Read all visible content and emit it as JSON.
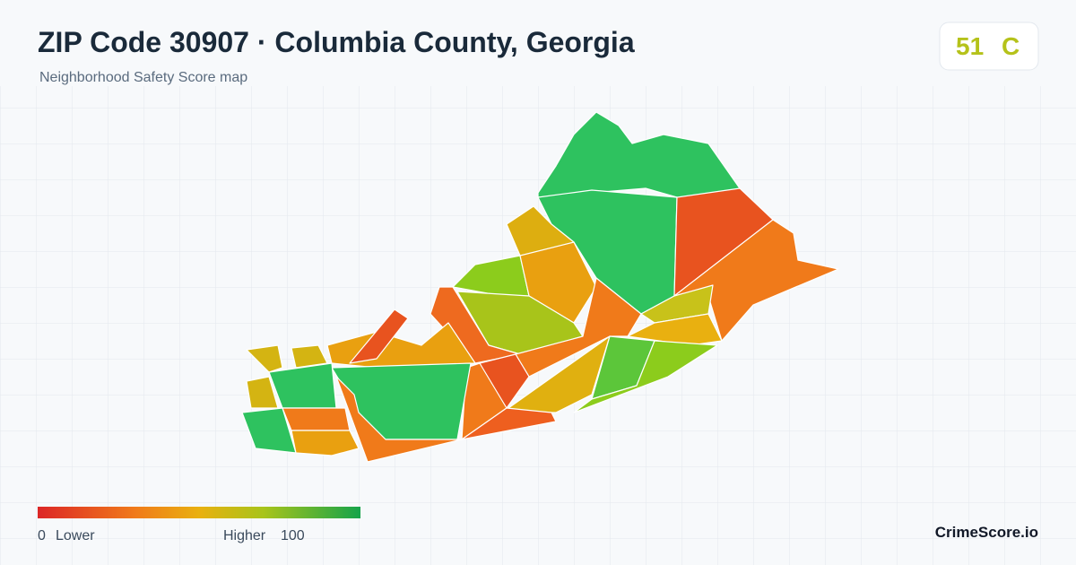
{
  "header": {
    "title": "ZIP Code 30907 · Columbia County, Georgia",
    "subtitle": "Neighborhood Safety Score map"
  },
  "badge": {
    "score": "51",
    "grade": "C"
  },
  "legend": {
    "min": "0",
    "min_label": "Lower",
    "max_label": "Higher",
    "max": "100"
  },
  "brand": "CrimeScore.io"
}
